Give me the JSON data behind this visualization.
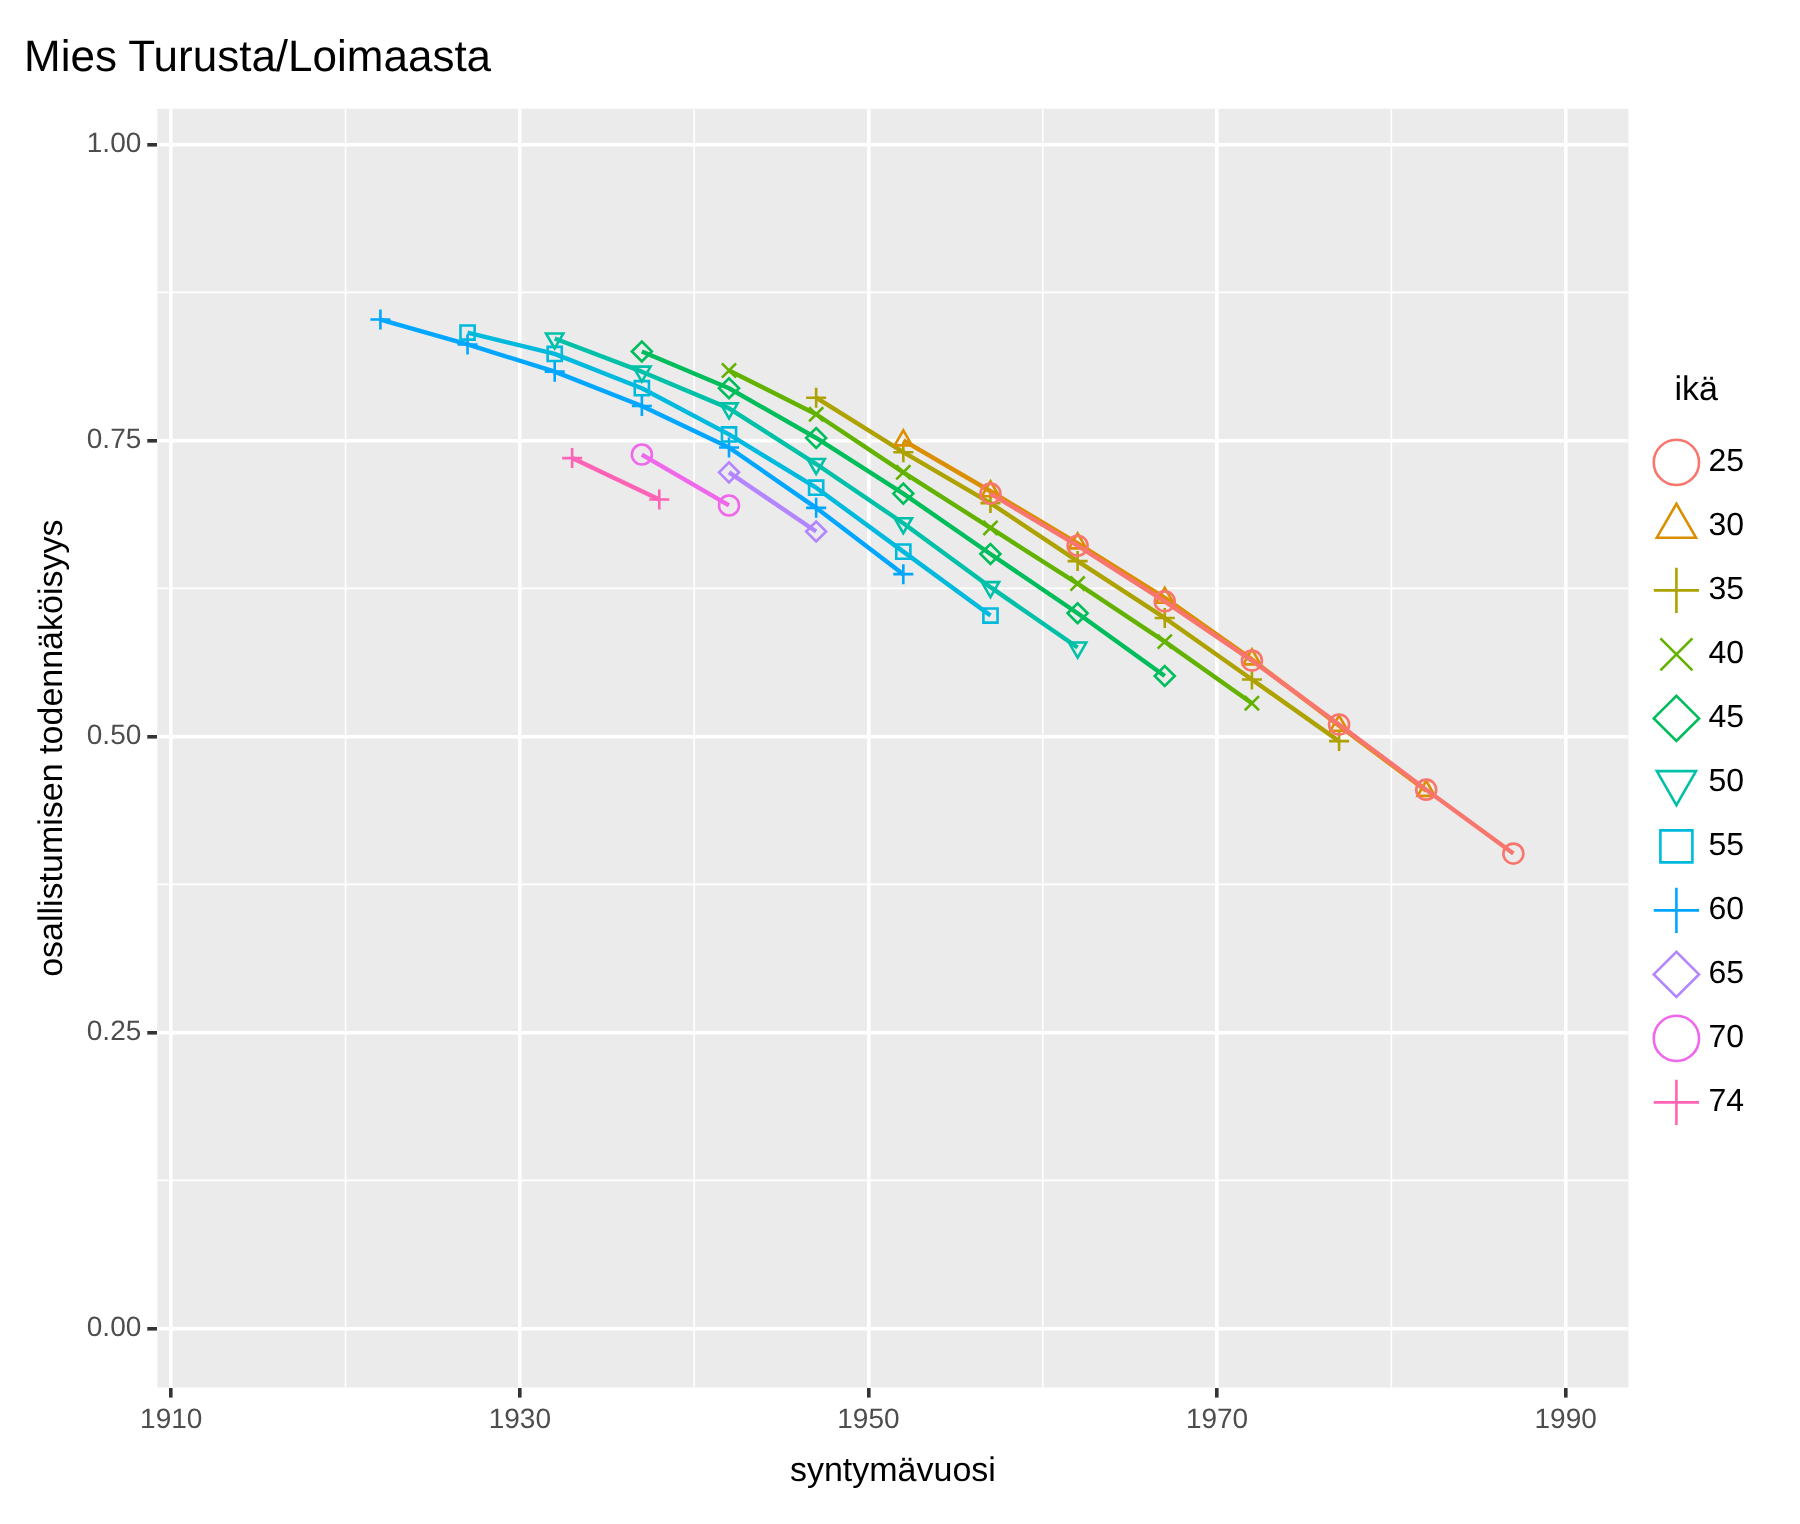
{
  "chart_data": {
    "type": "line",
    "title": "Mies Turusta/Loimaasta",
    "xlabel": "syntymävuosi",
    "ylabel": "osallistumisen todennäköisyys",
    "legend_title": "ikä",
    "legend": "right",
    "grid": true,
    "xlim": [
      1909.2,
      1993.6
    ],
    "xticks": [
      1910,
      1930,
      1950,
      1970,
      1990
    ],
    "ylim": [
      -0.05,
      1.03
    ],
    "yticks": [
      {
        "value": 0,
        "label": "0.00"
      },
      {
        "value": 0.25,
        "label": "0.25"
      },
      {
        "value": 0.5,
        "label": "0.50"
      },
      {
        "value": 0.75,
        "label": "0.75"
      },
      {
        "value": 1,
        "label": "1.00"
      }
    ],
    "series": [
      {
        "name": "25",
        "color": "#F8766D",
        "marker": "circle",
        "x": [
          1957,
          1962,
          1967,
          1972,
          1977,
          1982,
          1987
        ],
        "values": [
          0.705,
          0.661,
          0.614,
          0.564,
          0.51,
          0.455,
          0.401
        ]
      },
      {
        "name": "30",
        "color": "#DB8E00",
        "marker": "triangle",
        "x": [
          1952,
          1957,
          1962,
          1967,
          1972,
          1977,
          1982
        ],
        "values": [
          0.75,
          0.707,
          0.663,
          0.617,
          0.565,
          0.509,
          0.454
        ]
      },
      {
        "name": "35",
        "color": "#AEA200",
        "marker": "cross",
        "x": [
          1947,
          1952,
          1957,
          1962,
          1967,
          1972,
          1977
        ],
        "values": [
          0.786,
          0.74,
          0.697,
          0.648,
          0.6,
          0.548,
          0.496
        ]
      },
      {
        "name": "40",
        "color": "#64B200",
        "marker": "x",
        "x": [
          1942,
          1947,
          1952,
          1957,
          1962,
          1967,
          1972
        ],
        "values": [
          0.809,
          0.772,
          0.723,
          0.676,
          0.629,
          0.58,
          0.528
        ]
      },
      {
        "name": "45",
        "color": "#00BD5C",
        "marker": "diamond",
        "x": [
          1937,
          1942,
          1947,
          1952,
          1957,
          1962,
          1967
        ],
        "values": [
          0.825,
          0.794,
          0.752,
          0.705,
          0.654,
          0.604,
          0.551
        ]
      },
      {
        "name": "50",
        "color": "#00C1A7",
        "marker": "triangle-down",
        "x": [
          1932,
          1937,
          1942,
          1947,
          1952,
          1957,
          1962
        ],
        "values": [
          0.836,
          0.808,
          0.777,
          0.73,
          0.68,
          0.626,
          0.575
        ]
      },
      {
        "name": "55",
        "color": "#00BADE",
        "marker": "square",
        "x": [
          1927,
          1932,
          1937,
          1942,
          1947,
          1952,
          1957
        ],
        "values": [
          0.841,
          0.823,
          0.794,
          0.755,
          0.71,
          0.656,
          0.602
        ]
      },
      {
        "name": "60",
        "color": "#00A6FF",
        "marker": "cross",
        "x": [
          1922,
          1927,
          1932,
          1937,
          1942,
          1947,
          1952
        ],
        "values": [
          0.852,
          0.831,
          0.808,
          0.779,
          0.744,
          0.693,
          0.637
        ]
      },
      {
        "name": "65",
        "color": "#B385FF",
        "marker": "diamond",
        "x": [
          1942,
          1947
        ],
        "values": [
          0.723,
          0.673
        ]
      },
      {
        "name": "70",
        "color": "#EF67EB",
        "marker": "circle",
        "x": [
          1937,
          1942
        ],
        "values": [
          0.738,
          0.695
        ]
      },
      {
        "name": "74",
        "color": "#FF63B6",
        "marker": "cross",
        "x": [
          1933,
          1938
        ],
        "values": [
          0.735,
          0.7
        ]
      }
    ]
  }
}
